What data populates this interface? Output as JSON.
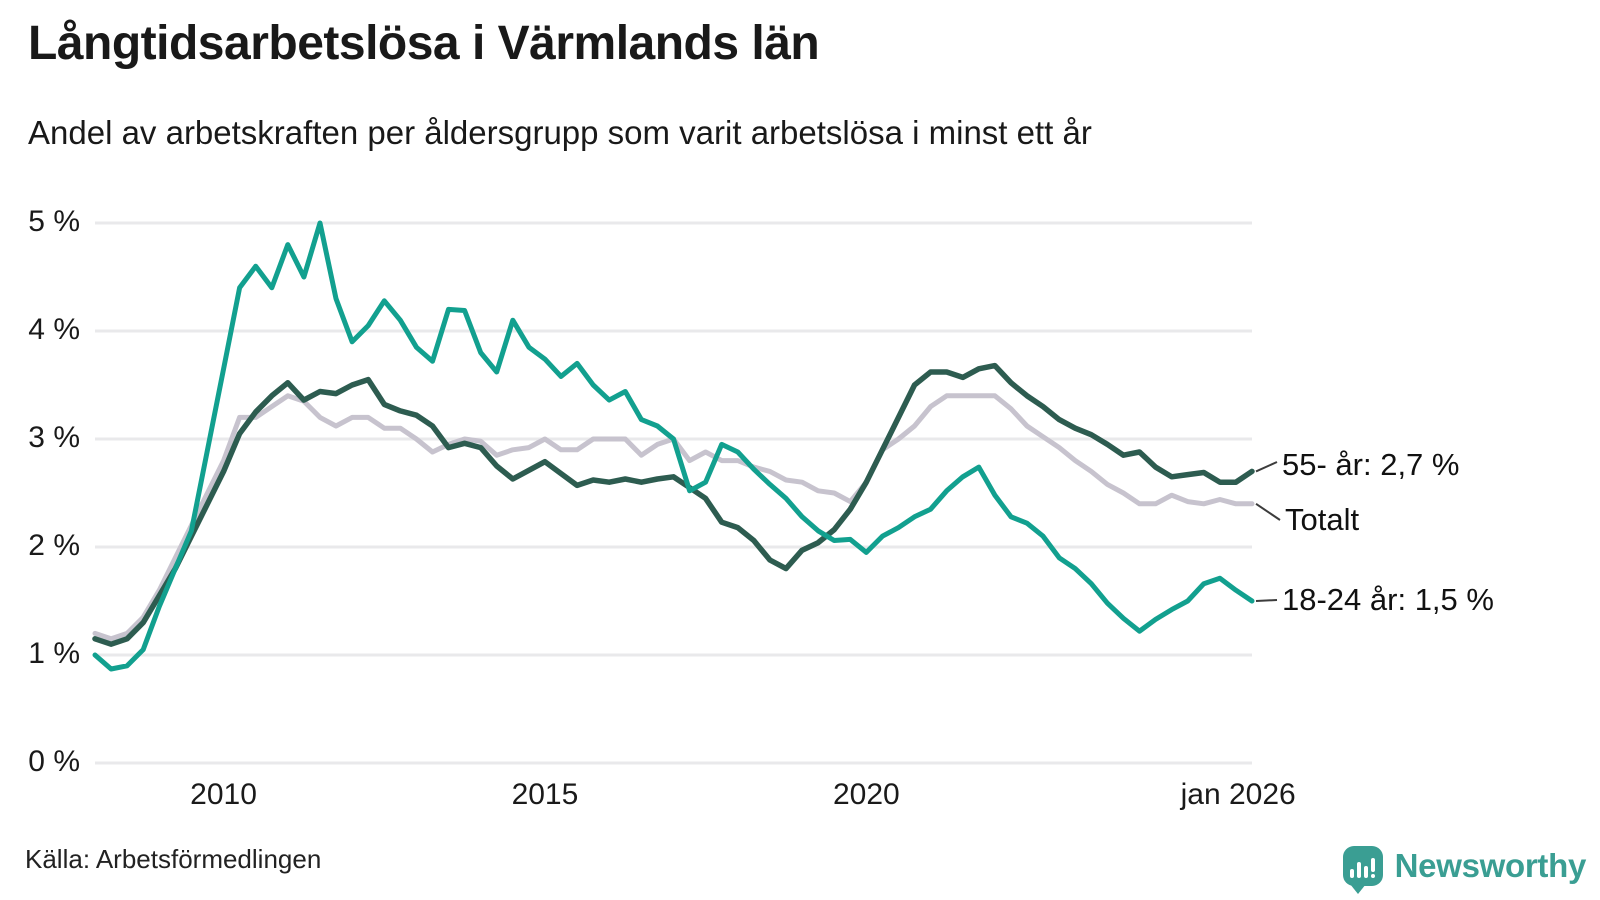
{
  "header": {
    "title": "Långtidsarbetslösa i Värmlands län",
    "subtitle": "Andel av arbetskraften per åldersgrupp som varit arbetslösa i minst ett år"
  },
  "colors": {
    "teal": "#12a08f",
    "dark_green": "#2d5c50",
    "gray": "#c7c3ce",
    "grid": "#e9e9eb",
    "leader": "#3c3c3c",
    "text": "#1a1a1a",
    "brand": "#3a9e93"
  },
  "chart_data": {
    "type": "line",
    "xlabel": "",
    "ylabel": "",
    "xlim": [
      2008,
      2026
    ],
    "ylim": [
      0,
      5
    ],
    "grid": "horizontal",
    "x": [
      2008,
      2008.25,
      2008.5,
      2008.75,
      2009,
      2009.25,
      2009.5,
      2009.75,
      2010,
      2010.25,
      2010.5,
      2010.75,
      2011,
      2011.25,
      2011.5,
      2011.75,
      2012,
      2012.25,
      2012.5,
      2012.75,
      2013,
      2013.25,
      2013.5,
      2013.75,
      2014,
      2014.25,
      2014.5,
      2014.75,
      2015,
      2015.25,
      2015.5,
      2015.75,
      2016,
      2016.25,
      2016.5,
      2016.75,
      2017,
      2017.25,
      2017.5,
      2017.75,
      2018,
      2018.25,
      2018.5,
      2018.75,
      2019,
      2019.25,
      2019.5,
      2019.75,
      2020,
      2020.25,
      2020.5,
      2020.75,
      2021,
      2021.25,
      2021.5,
      2021.75,
      2022,
      2022.25,
      2022.5,
      2022.75,
      2023,
      2023.25,
      2023.5,
      2023.75,
      2024,
      2024.25,
      2024.5,
      2024.75,
      2025,
      2025.25,
      2025.5,
      2025.75,
      2026
    ],
    "series": [
      {
        "name": "Totalt",
        "color_key": "gray",
        "stroke_width": 5,
        "values": [
          1.2,
          1.15,
          1.2,
          1.35,
          1.6,
          1.9,
          2.2,
          2.5,
          2.8,
          3.2,
          3.2,
          3.3,
          3.4,
          3.35,
          3.2,
          3.12,
          3.2,
          3.2,
          3.1,
          3.1,
          3.0,
          2.88,
          2.95,
          3.0,
          2.98,
          2.85,
          2.9,
          2.92,
          3.0,
          2.9,
          2.9,
          3.0,
          3.0,
          3.0,
          2.85,
          2.95,
          3.0,
          2.8,
          2.88,
          2.8,
          2.8,
          2.74,
          2.7,
          2.62,
          2.6,
          2.52,
          2.5,
          2.42,
          2.6,
          2.9,
          3.0,
          3.12,
          3.3,
          3.4,
          3.4,
          3.4,
          3.4,
          3.28,
          3.12,
          3.02,
          2.92,
          2.8,
          2.7,
          2.58,
          2.5,
          2.4,
          2.4,
          2.48,
          2.42,
          2.4,
          2.44,
          2.4,
          2.4
        ]
      },
      {
        "name": "55- år",
        "color_key": "dark_green",
        "stroke_width": 5.5,
        "values": [
          1.15,
          1.1,
          1.15,
          1.3,
          1.55,
          1.8,
          2.1,
          2.4,
          2.7,
          3.05,
          3.25,
          3.4,
          3.52,
          3.36,
          3.44,
          3.42,
          3.5,
          3.55,
          3.32,
          3.26,
          3.22,
          3.12,
          2.92,
          2.96,
          2.92,
          2.75,
          2.63,
          2.71,
          2.79,
          2.68,
          2.57,
          2.62,
          2.6,
          2.63,
          2.6,
          2.63,
          2.65,
          2.55,
          2.45,
          2.23,
          2.18,
          2.06,
          1.88,
          1.8,
          1.97,
          2.04,
          2.16,
          2.35,
          2.6,
          2.9,
          3.2,
          3.5,
          3.62,
          3.62,
          3.57,
          3.65,
          3.68,
          3.52,
          3.4,
          3.3,
          3.18,
          3.1,
          3.04,
          2.95,
          2.85,
          2.88,
          2.74,
          2.65,
          2.67,
          2.69,
          2.6,
          2.6,
          2.7
        ]
      },
      {
        "name": "18-24 år",
        "color_key": "teal",
        "stroke_width": 5,
        "values": [
          1.0,
          0.87,
          0.9,
          1.05,
          1.45,
          1.8,
          2.15,
          2.9,
          3.65,
          4.4,
          4.6,
          4.4,
          4.8,
          4.5,
          5.0,
          4.3,
          3.9,
          4.05,
          4.28,
          4.1,
          3.85,
          3.72,
          4.2,
          4.19,
          3.8,
          3.62,
          4.1,
          3.85,
          3.74,
          3.58,
          3.7,
          3.5,
          3.36,
          3.44,
          3.18,
          3.12,
          3.0,
          2.52,
          2.6,
          2.95,
          2.88,
          2.72,
          2.58,
          2.45,
          2.28,
          2.15,
          2.06,
          2.07,
          1.95,
          2.1,
          2.18,
          2.28,
          2.35,
          2.52,
          2.65,
          2.74,
          2.48,
          2.28,
          2.22,
          2.1,
          1.9,
          1.8,
          1.66,
          1.48,
          1.34,
          1.22,
          1.33,
          1.42,
          1.5,
          1.66,
          1.71,
          1.6,
          1.5
        ]
      }
    ],
    "yticks": [
      {
        "label": "5 %",
        "value": 5
      },
      {
        "label": "4 %",
        "value": 4
      },
      {
        "label": "3 %",
        "value": 3
      },
      {
        "label": "2 %",
        "value": 2
      },
      {
        "label": "1 %",
        "value": 1
      },
      {
        "label": "0 %",
        "value": 0
      }
    ],
    "xticks": [
      {
        "label": "2010",
        "year": 2010
      },
      {
        "label": "2015",
        "year": 2015
      },
      {
        "label": "2020",
        "year": 2020
      },
      {
        "label": "jan 2026",
        "year": 2026
      }
    ],
    "end_labels": [
      {
        "text": "55- år: 2,7 %",
        "series": "55- år",
        "end_value": "2,7 %"
      },
      {
        "text": "Totalt",
        "series": "Totalt",
        "end_value": ""
      },
      {
        "text": "18-24 år: 1,5 %",
        "series": "18-24 år",
        "end_value": "1,5 %"
      }
    ]
  },
  "footer": {
    "source": "Källa: Arbetsförmedlingen",
    "brand_name": "Newsworthy"
  }
}
